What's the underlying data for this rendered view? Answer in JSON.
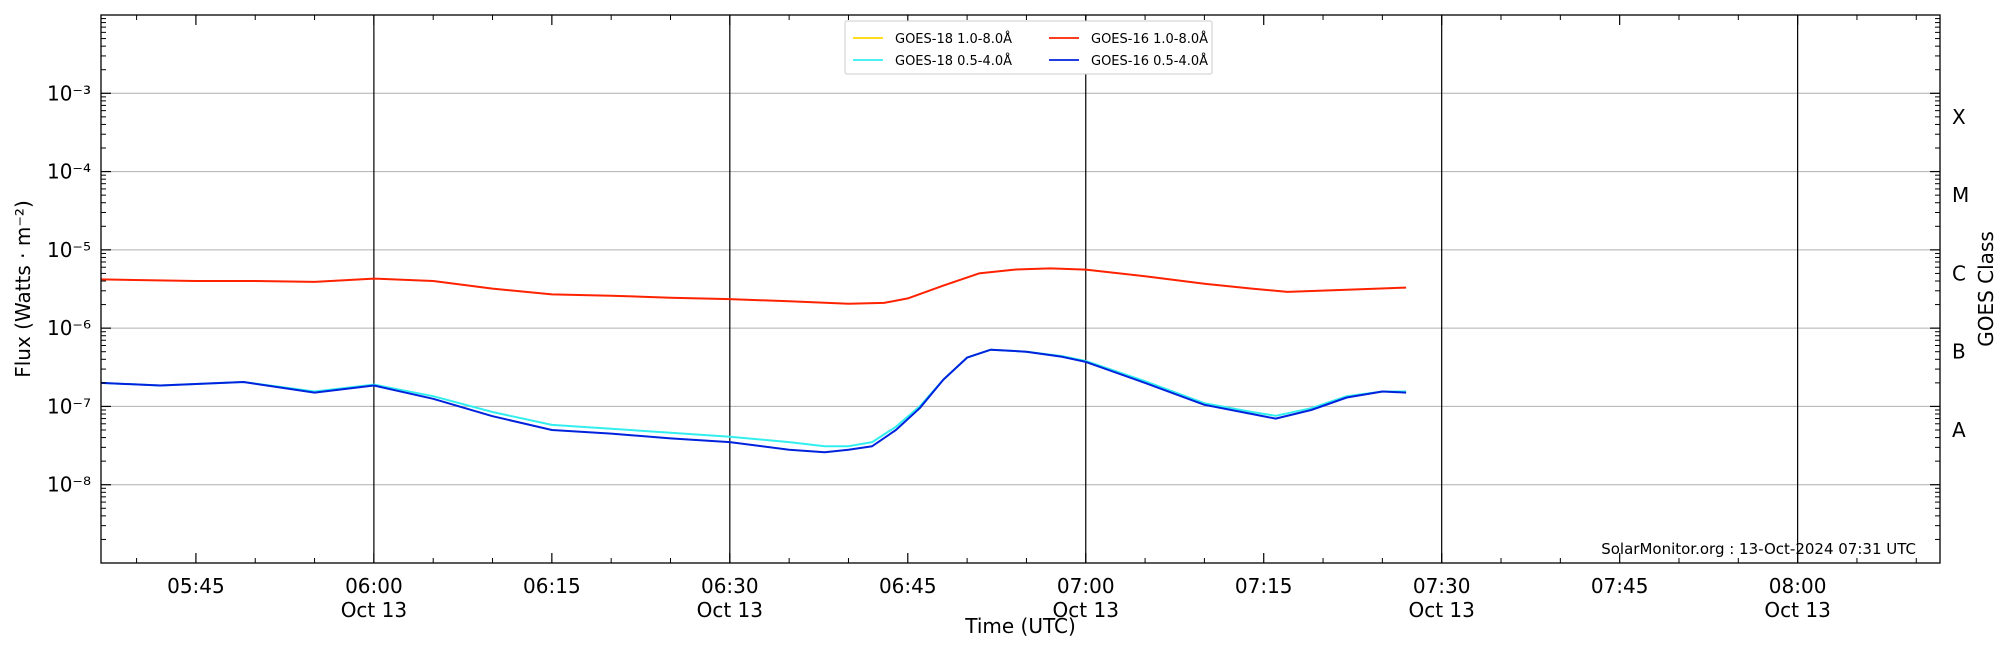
{
  "chart_data": {
    "type": "line",
    "xlabel": "Time (UTC)",
    "ylabel": "Flux (Watts · m⁻²)",
    "y2label": "GOES Class",
    "yscale": "log",
    "xlim": [
      "05:37",
      "08:12"
    ],
    "ylim": [
      1e-09,
      0.01
    ],
    "grid": true,
    "legend_position": "top-center",
    "x_ticks": [
      {
        "time": "05:45",
        "label": "05:45",
        "date": ""
      },
      {
        "time": "06:00",
        "label": "06:00",
        "date": "Oct 13"
      },
      {
        "time": "06:15",
        "label": "06:15",
        "date": ""
      },
      {
        "time": "06:30",
        "label": "06:30",
        "date": "Oct 13"
      },
      {
        "time": "06:45",
        "label": "06:45",
        "date": ""
      },
      {
        "time": "07:00",
        "label": "07:00",
        "date": "Oct 13"
      },
      {
        "time": "07:15",
        "label": "07:15",
        "date": ""
      },
      {
        "time": "07:30",
        "label": "07:30",
        "date": "Oct 13"
      },
      {
        "time": "07:45",
        "label": "07:45",
        "date": ""
      },
      {
        "time": "08:00",
        "label": "08:00",
        "date": "Oct 13"
      }
    ],
    "y_ticks": [
      {
        "value": 1e-08,
        "label": "10⁻⁸"
      },
      {
        "value": 1e-07,
        "label": "10⁻⁷"
      },
      {
        "value": 1e-06,
        "label": "10⁻⁶"
      },
      {
        "value": 1e-05,
        "label": "10⁻⁵"
      },
      {
        "value": 0.0001,
        "label": "10⁻⁴"
      },
      {
        "value": 0.001,
        "label": "10⁻³"
      }
    ],
    "vlines": [
      "06:00",
      "06:30",
      "07:00",
      "07:30",
      "08:00"
    ],
    "goes_classes": [
      {
        "label": "A",
        "value": 5e-08
      },
      {
        "label": "B",
        "value": 5e-07
      },
      {
        "label": "C",
        "value": 5e-06
      },
      {
        "label": "M",
        "value": 5e-05
      },
      {
        "label": "X",
        "value": 0.0005
      }
    ],
    "series": [
      {
        "name": "GOES-18 1.0-8.0Å",
        "color": "#ffd700",
        "points": []
      },
      {
        "name": "GOES-16 1.0-8.0Å",
        "color": "#ff2200",
        "points": [
          [
            "05:37",
            4.2e-06
          ],
          [
            "05:45",
            4e-06
          ],
          [
            "05:50",
            4e-06
          ],
          [
            "05:55",
            3.9e-06
          ],
          [
            "06:00",
            4.3e-06
          ],
          [
            "06:05",
            4e-06
          ],
          [
            "06:10",
            3.2e-06
          ],
          [
            "06:15",
            2.7e-06
          ],
          [
            "06:20",
            2.6e-06
          ],
          [
            "06:25",
            2.45e-06
          ],
          [
            "06:30",
            2.35e-06
          ],
          [
            "06:35",
            2.2e-06
          ],
          [
            "06:40",
            2.05e-06
          ],
          [
            "06:43",
            2.1e-06
          ],
          [
            "06:45",
            2.4e-06
          ],
          [
            "06:48",
            3.5e-06
          ],
          [
            "06:51",
            5e-06
          ],
          [
            "06:54",
            5.6e-06
          ],
          [
            "06:57",
            5.8e-06
          ],
          [
            "07:00",
            5.6e-06
          ],
          [
            "07:05",
            4.6e-06
          ],
          [
            "07:10",
            3.7e-06
          ],
          [
            "07:14",
            3.2e-06
          ],
          [
            "07:17",
            2.9e-06
          ],
          [
            "07:22",
            3.1e-06
          ],
          [
            "07:27",
            3.3e-06
          ]
        ]
      },
      {
        "name": "GOES-18 0.5-4.0Å",
        "color": "#33eeee",
        "points": [
          [
            "05:37",
            2e-07
          ],
          [
            "05:42",
            1.85e-07
          ],
          [
            "05:49",
            2.05e-07
          ],
          [
            "05:55",
            1.55e-07
          ],
          [
            "06:00",
            1.9e-07
          ],
          [
            "06:05",
            1.35e-07
          ],
          [
            "06:10",
            8.5e-08
          ],
          [
            "06:15",
            5.8e-08
          ],
          [
            "06:20",
            5.2e-08
          ],
          [
            "06:25",
            4.6e-08
          ],
          [
            "06:30",
            4.1e-08
          ],
          [
            "06:35",
            3.5e-08
          ],
          [
            "06:38",
            3.1e-08
          ],
          [
            "06:40",
            3.1e-08
          ],
          [
            "06:42",
            3.5e-08
          ],
          [
            "06:44",
            5.5e-08
          ],
          [
            "06:46",
            1e-07
          ],
          [
            "06:48",
            2.2e-07
          ],
          [
            "06:50",
            4.2e-07
          ],
          [
            "06:52",
            5.3e-07
          ],
          [
            "06:55",
            5e-07
          ],
          [
            "06:58",
            4.4e-07
          ],
          [
            "07:00",
            3.8e-07
          ],
          [
            "07:05",
            2.1e-07
          ],
          [
            "07:10",
            1.1e-07
          ],
          [
            "07:14",
            8.5e-08
          ],
          [
            "07:16",
            7.6e-08
          ],
          [
            "07:19",
            9.5e-08
          ],
          [
            "07:22",
            1.35e-07
          ],
          [
            "07:25",
            1.55e-07
          ],
          [
            "07:27",
            1.55e-07
          ]
        ]
      },
      {
        "name": "GOES-16 0.5-4.0Å",
        "color": "#0022dd",
        "points": [
          [
            "05:37",
            2e-07
          ],
          [
            "05:42",
            1.85e-07
          ],
          [
            "05:49",
            2.05e-07
          ],
          [
            "05:55",
            1.5e-07
          ],
          [
            "06:00",
            1.85e-07
          ],
          [
            "06:05",
            1.25e-07
          ],
          [
            "06:10",
            7.5e-08
          ],
          [
            "06:15",
            5e-08
          ],
          [
            "06:20",
            4.5e-08
          ],
          [
            "06:25",
            3.9e-08
          ],
          [
            "06:30",
            3.5e-08
          ],
          [
            "06:35",
            2.8e-08
          ],
          [
            "06:38",
            2.6e-08
          ],
          [
            "06:40",
            2.8e-08
          ],
          [
            "06:42",
            3.1e-08
          ],
          [
            "06:44",
            5e-08
          ],
          [
            "06:46",
            9.5e-08
          ],
          [
            "06:48",
            2.2e-07
          ],
          [
            "06:50",
            4.2e-07
          ],
          [
            "06:52",
            5.3e-07
          ],
          [
            "06:55",
            5e-07
          ],
          [
            "06:58",
            4.3e-07
          ],
          [
            "07:00",
            3.7e-07
          ],
          [
            "07:05",
            2e-07
          ],
          [
            "07:10",
            1.05e-07
          ],
          [
            "07:14",
            8e-08
          ],
          [
            "07:16",
            7e-08
          ],
          [
            "07:19",
            9e-08
          ],
          [
            "07:22",
            1.3e-07
          ],
          [
            "07:25",
            1.55e-07
          ],
          [
            "07:27",
            1.5e-07
          ]
        ]
      }
    ],
    "annotation": "SolarMonitor.org : 13-Oct-2024 07:31 UTC"
  }
}
